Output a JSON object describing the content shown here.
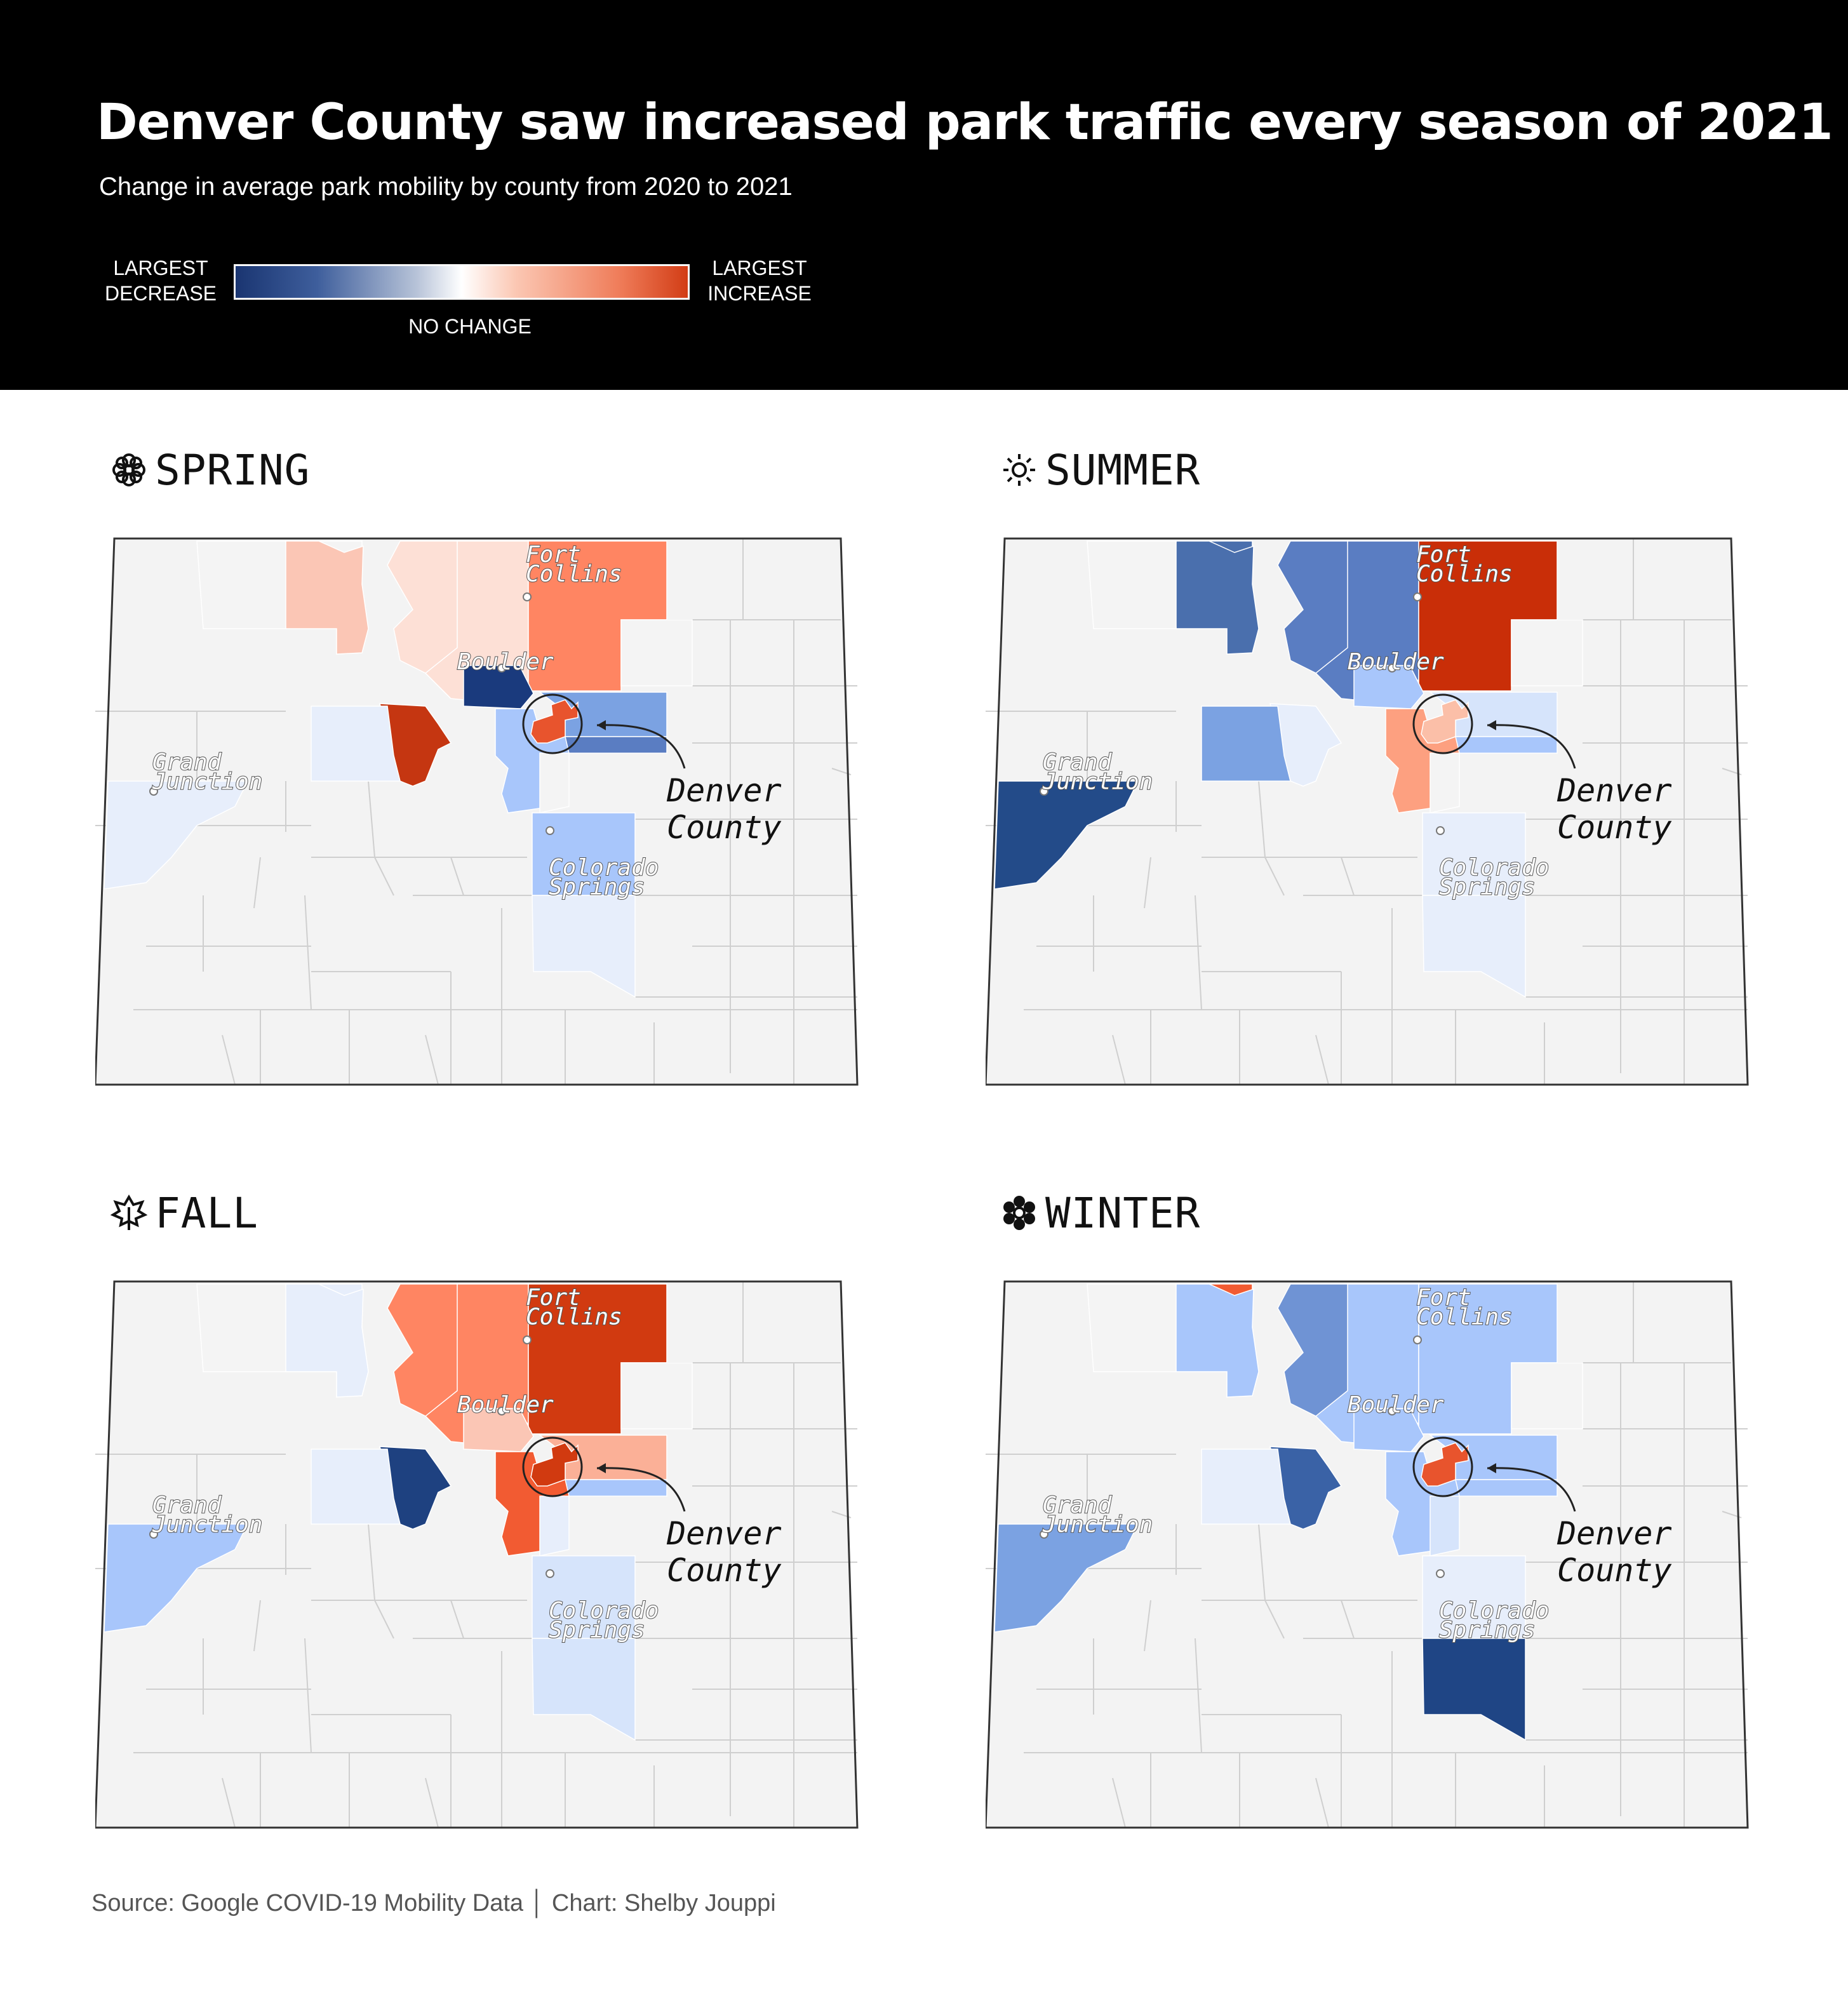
{
  "header": {
    "title": "Denver County saw increased park traffic every season of 2021",
    "subtitle": "Change in average park mobility by county from 2020 to 2021"
  },
  "legend": {
    "left": "LARGEST DECREASE",
    "right": "LARGEST INCREASE",
    "middle": "NO CHANGE",
    "colors": {
      "decrease": "#1a3571",
      "neutral": "#ffffff",
      "increase": "#d23d16"
    }
  },
  "city_labels": {
    "fort_collins": [
      "Fort",
      "Collins"
    ],
    "boulder": "Boulder",
    "grand_junction": [
      "Grand",
      "Junction"
    ],
    "colorado_springs": [
      "Colorado",
      "Springs"
    ],
    "denver_county": [
      "Denver",
      "County"
    ]
  },
  "seasons": [
    {
      "name": "SPRING",
      "icon": "flower-icon",
      "fills": {
        "jackson": "#f4f4f4",
        "grand": "#fbc6b5",
        "larimer_w": "#fde0d6",
        "larimer_e": "#fde0d6",
        "weld": "#ff8562",
        "morgan": "#f4f4f4",
        "routt": "#f4f4f4",
        "boulder": "#1a3a7d",
        "gilpin_cc": "#c53611",
        "summit": "#e7eefb",
        "adams": "#7ba2e2",
        "arapahoe": "#5a7dc2",
        "jefferson": "#a8c6fb",
        "douglas": "#f4f4f4",
        "elpaso_n": "#a8c6fb",
        "elpaso_s": "#e7eefb",
        "mesa": "#e7eefb",
        "denver": "#e8542d"
      }
    },
    {
      "name": "SUMMER",
      "icon": "sun-icon",
      "fills": {
        "jackson": "#4a6fad",
        "grand": "#4a6fad",
        "larimer_w": "#5a7dc2",
        "larimer_e": "#5a7dc2",
        "weld": "#c92e08",
        "morgan": "#f4f4f4",
        "routt": "#f4f4f4",
        "boulder": "#a8c6fb",
        "gilpin_cc": "#e7eefb",
        "summit": "#7ba2e2",
        "adams": "#d6e4fb",
        "arapahoe": "#a8c6fb",
        "jefferson": "#fda080",
        "douglas": "#f4f4f4",
        "elpaso_n": "#e7eefb",
        "elpaso_s": "#e7eefb",
        "mesa": "#234b89",
        "denver": "#fbbfa8"
      }
    },
    {
      "name": "FALL",
      "icon": "leaf-icon",
      "fills": {
        "jackson": "#e7eefb",
        "grand": "#e7eefb",
        "larimer_w": "#ff8562",
        "larimer_e": "#ff8562",
        "weld": "#d13a10",
        "morgan": "#f4f4f4",
        "routt": "#f4f4f4",
        "boulder": "#fbc6b5",
        "gilpin_cc": "#1e4180",
        "summit": "#e7eefb",
        "adams": "#fbb097",
        "arapahoe": "#a8c6fb",
        "jefferson": "#f25b32",
        "douglas": "#e7eefb",
        "elpaso_n": "#d6e4fb",
        "elpaso_s": "#d6e4fb",
        "mesa": "#a8c6fb",
        "denver": "#d13a10"
      }
    },
    {
      "name": "WINTER",
      "icon": "snowflake-icon",
      "fills": {
        "jackson": "#f25b32",
        "grand": "#a8c6fb",
        "larimer_w": "#6f93d4",
        "larimer_e": "#a8c6fb",
        "weld": "#a8c6fb",
        "morgan": "#f4f4f4",
        "routt": "#f4f4f4",
        "boulder": "#a8c6fb",
        "gilpin_cc": "#3a62a6",
        "summit": "#e7eefb",
        "adams": "#a8c6fb",
        "arapahoe": "#a8c6fb",
        "jefferson": "#a8c6fb",
        "douglas": "#d6e4fb",
        "elpaso_n": "#e7eefb",
        "elpaso_s": "#1f4585",
        "mesa": "#7ba2e2",
        "denver": "#e8542d"
      }
    }
  ],
  "footer": {
    "source": "Source: Google COVID-19 Mobility Data │ Chart: Shelby Jouppi"
  }
}
